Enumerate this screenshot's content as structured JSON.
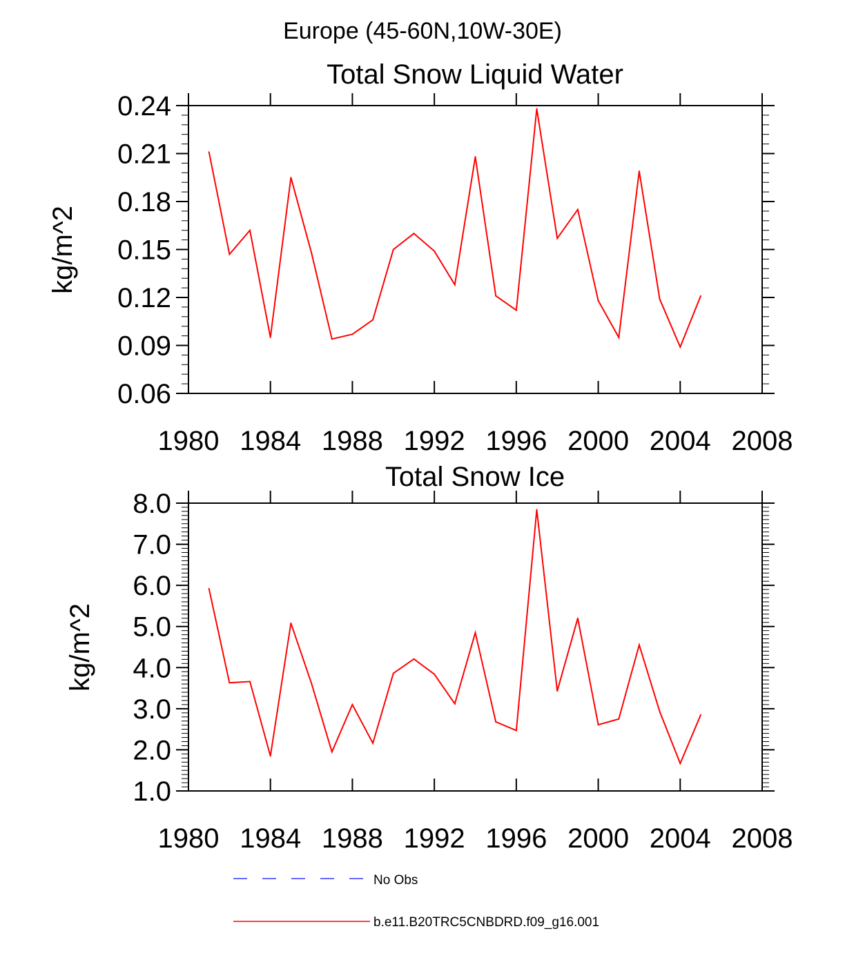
{
  "figure_title": "Europe (45-60N,10W-30E)",
  "line_color": "#ff0000",
  "obs_color": "#3333ff",
  "chart_data": [
    {
      "type": "line",
      "title": "Total Snow Liquid Water",
      "xlabel": "",
      "ylabel": "kg/m^2",
      "xlim": [
        1980,
        2008
      ],
      "ylim": [
        0.06,
        0.24
      ],
      "xticks": [
        1980,
        1984,
        1988,
        1992,
        1996,
        2000,
        2004,
        2008
      ],
      "xtick_labels": [
        "1980",
        "1984",
        "1988",
        "1992",
        "1996",
        "2000",
        "2004",
        "2008"
      ],
      "yticks": [
        0.06,
        0.09,
        0.12,
        0.15,
        0.18,
        0.21,
        0.24
      ],
      "ytick_labels": [
        "0.06",
        "0.09",
        "0.12",
        "0.15",
        "0.18",
        "0.21",
        "0.24"
      ],
      "series": [
        {
          "name": "b.e11.B20TRC5CNBDRD.f09_g16.001",
          "x": [
            1981,
            1982,
            1983,
            1984,
            1985,
            1986,
            1987,
            1988,
            1989,
            1990,
            1991,
            1992,
            1993,
            1994,
            1995,
            1996,
            1997,
            1998,
            1999,
            2000,
            2001,
            2002,
            2003,
            2004,
            2005
          ],
          "values": [
            0.211,
            0.147,
            0.162,
            0.095,
            0.195,
            0.148,
            0.094,
            0.097,
            0.106,
            0.15,
            0.16,
            0.149,
            0.128,
            0.208,
            0.121,
            0.112,
            0.238,
            0.157,
            0.175,
            0.118,
            0.095,
            0.199,
            0.119,
            0.089,
            0.121
          ]
        }
      ]
    },
    {
      "type": "line",
      "title": "Total Snow Ice",
      "xlabel": "",
      "ylabel": "kg/m^2",
      "xlim": [
        1980,
        2008
      ],
      "ylim": [
        1.0,
        8.0
      ],
      "xticks": [
        1980,
        1984,
        1988,
        1992,
        1996,
        2000,
        2004,
        2008
      ],
      "xtick_labels": [
        "1980",
        "1984",
        "1988",
        "1992",
        "1996",
        "2000",
        "2004",
        "2008"
      ],
      "yticks": [
        1.0,
        2.0,
        3.0,
        4.0,
        5.0,
        6.0,
        7.0,
        8.0
      ],
      "ytick_labels": [
        "1.0",
        "2.0",
        "3.0",
        "4.0",
        "5.0",
        "6.0",
        "7.0",
        "8.0"
      ],
      "series": [
        {
          "name": "b.e11.B20TRC5CNBDRD.f09_g16.001",
          "x": [
            1981,
            1982,
            1983,
            1984,
            1985,
            1986,
            1987,
            1988,
            1989,
            1990,
            1991,
            1992,
            1993,
            1994,
            1995,
            1996,
            1997,
            1998,
            1999,
            2000,
            2001,
            2002,
            2003,
            2004,
            2005
          ],
          "values": [
            5.92,
            3.63,
            3.66,
            1.85,
            5.08,
            3.62,
            1.95,
            3.1,
            2.16,
            3.86,
            4.21,
            3.84,
            3.12,
            4.85,
            2.68,
            2.47,
            7.84,
            3.43,
            5.2,
            2.61,
            2.75,
            4.55,
            2.93,
            1.67,
            2.85
          ]
        }
      ]
    }
  ],
  "legend": {
    "items": [
      {
        "label": "No Obs",
        "style": "dashed"
      },
      {
        "label": "b.e11.B20TRC5CNBDRD.f09_g16.001",
        "style": "solid"
      }
    ]
  }
}
